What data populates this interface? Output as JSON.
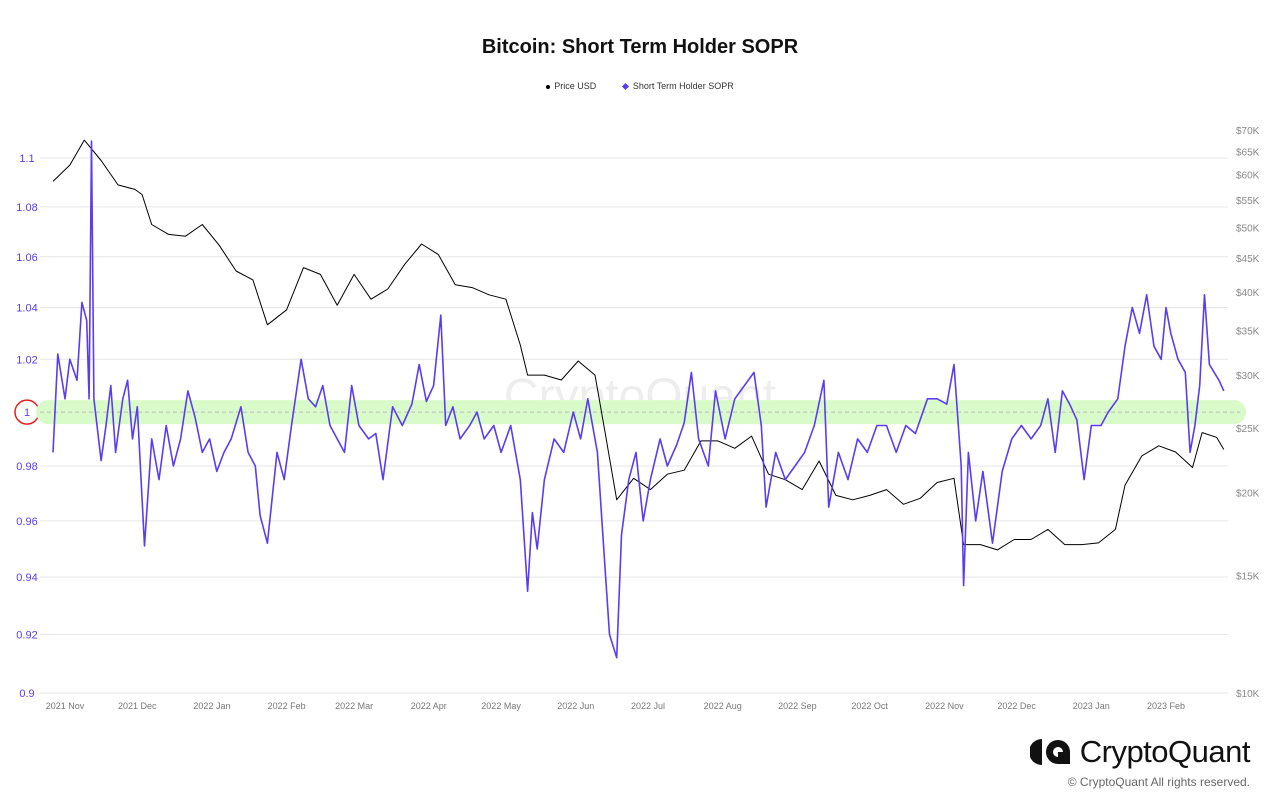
{
  "chart_data": {
    "type": "line",
    "title": "Bitcoin: Short Term Holder SOPR",
    "legend_position": "top",
    "grid": true,
    "x_ticks": [
      "2021 Nov",
      "2021 Dec",
      "2022 Jan",
      "2022 Feb",
      "2022 Mar",
      "2022 Apr",
      "2022 May",
      "2022 Jun",
      "2022 Jul",
      "2022 Aug",
      "2022 Sep",
      "2022 Oct",
      "2022 Nov",
      "2022 Dec",
      "2023 Jan",
      "2023 Feb"
    ],
    "left_axis": {
      "scale": "log",
      "range": [
        0.9,
        1.1
      ],
      "ticks": [
        "1.1",
        "1.08",
        "1.06",
        "1.04",
        "1.02",
        "1",
        "0.98",
        "0.96",
        "0.94",
        "0.92",
        "0.9"
      ],
      "color": "#5b3cf0",
      "highlighted_tick": "1",
      "highlight_color": "#e02020"
    },
    "right_axis": {
      "scale": "log",
      "range": [
        10000,
        70000
      ],
      "ticks": [
        "$70K",
        "$65K",
        "$60K",
        "$55K",
        "$50K",
        "$45K",
        "$40K",
        "$35K",
        "$30K",
        "$25K",
        "$20K",
        "$15K",
        "$10K"
      ]
    },
    "reference_band": {
      "value": 1,
      "color": "#d9fbc9"
    },
    "series": [
      {
        "name": "Price USD",
        "color": "#000000",
        "axis": "right",
        "points": [
          [
            "2021-10-27",
            58600
          ],
          [
            "2021-11-03",
            62000
          ],
          [
            "2021-11-09",
            67600
          ],
          [
            "2021-11-16",
            63000
          ],
          [
            "2021-11-23",
            57900
          ],
          [
            "2021-11-30",
            57000
          ],
          [
            "2021-12-03",
            56000
          ],
          [
            "2021-12-07",
            50500
          ],
          [
            "2021-12-14",
            48800
          ],
          [
            "2021-12-21",
            48500
          ],
          [
            "2021-12-28",
            50500
          ],
          [
            "2022-01-04",
            47000
          ],
          [
            "2022-01-11",
            43000
          ],
          [
            "2022-01-18",
            41700
          ],
          [
            "2022-01-24",
            35700
          ],
          [
            "2022-02-01",
            37600
          ],
          [
            "2022-02-08",
            43500
          ],
          [
            "2022-02-15",
            42500
          ],
          [
            "2022-02-22",
            38200
          ],
          [
            "2022-03-01",
            42500
          ],
          [
            "2022-03-08",
            39000
          ],
          [
            "2022-03-15",
            40400
          ],
          [
            "2022-03-22",
            44000
          ],
          [
            "2022-03-29",
            47200
          ],
          [
            "2022-04-05",
            45500
          ],
          [
            "2022-04-12",
            41000
          ],
          [
            "2022-04-19",
            40600
          ],
          [
            "2022-04-26",
            39600
          ],
          [
            "2022-05-03",
            39000
          ],
          [
            "2022-05-09",
            33300
          ],
          [
            "2022-05-12",
            30000
          ],
          [
            "2022-05-19",
            30000
          ],
          [
            "2022-05-26",
            29500
          ],
          [
            "2022-06-02",
            31500
          ],
          [
            "2022-06-09",
            30000
          ],
          [
            "2022-06-13",
            24800
          ],
          [
            "2022-06-18",
            19500
          ],
          [
            "2022-06-25",
            21000
          ],
          [
            "2022-07-02",
            20200
          ],
          [
            "2022-07-09",
            21300
          ],
          [
            "2022-07-16",
            21600
          ],
          [
            "2022-07-23",
            23900
          ],
          [
            "2022-07-30",
            23900
          ],
          [
            "2022-08-06",
            23300
          ],
          [
            "2022-08-13",
            24300
          ],
          [
            "2022-08-20",
            21300
          ],
          [
            "2022-08-27",
            20900
          ],
          [
            "2022-09-03",
            20200
          ],
          [
            "2022-09-10",
            22300
          ],
          [
            "2022-09-17",
            19800
          ],
          [
            "2022-09-24",
            19500
          ],
          [
            "2022-10-01",
            19800
          ],
          [
            "2022-10-08",
            20200
          ],
          [
            "2022-10-15",
            19200
          ],
          [
            "2022-10-22",
            19600
          ],
          [
            "2022-10-29",
            20700
          ],
          [
            "2022-11-05",
            21000
          ],
          [
            "2022-11-09",
            16700
          ],
          [
            "2022-11-16",
            16700
          ],
          [
            "2022-11-23",
            16400
          ],
          [
            "2022-11-30",
            17000
          ],
          [
            "2022-12-07",
            17000
          ],
          [
            "2022-12-14",
            17600
          ],
          [
            "2022-12-21",
            16700
          ],
          [
            "2022-12-28",
            16700
          ],
          [
            "2023-01-04",
            16800
          ],
          [
            "2023-01-11",
            17600
          ],
          [
            "2023-01-15",
            20500
          ],
          [
            "2023-01-22",
            22700
          ],
          [
            "2023-01-29",
            23500
          ],
          [
            "2023-02-05",
            23000
          ],
          [
            "2023-02-12",
            21800
          ],
          [
            "2023-02-16",
            24600
          ],
          [
            "2023-02-22",
            24200
          ],
          [
            "2023-02-25",
            23200
          ]
        ]
      },
      {
        "name": "Short Term Holder SOPR",
        "color": "#5b3cf0",
        "axis": "left",
        "points": [
          [
            "2021-10-27",
            0.985
          ],
          [
            "2021-10-29",
            1.022
          ],
          [
            "2021-11-01",
            1.005
          ],
          [
            "2021-11-03",
            1.02
          ],
          [
            "2021-11-06",
            1.012
          ],
          [
            "2021-11-08",
            1.042
          ],
          [
            "2021-11-10",
            1.035
          ],
          [
            "2021-11-11",
            1.005
          ],
          [
            "2021-11-12",
            1.107
          ],
          [
            "2021-11-13",
            1.005
          ],
          [
            "2021-11-16",
            0.982
          ],
          [
            "2021-11-18",
            0.995
          ],
          [
            "2021-11-20",
            1.01
          ],
          [
            "2021-11-22",
            0.985
          ],
          [
            "2021-11-25",
            1.005
          ],
          [
            "2021-11-27",
            1.012
          ],
          [
            "2021-11-29",
            0.99
          ],
          [
            "2021-12-01",
            1.002
          ],
          [
            "2021-12-04",
            0.951
          ],
          [
            "2021-12-07",
            0.99
          ],
          [
            "2021-12-10",
            0.975
          ],
          [
            "2021-12-13",
            0.995
          ],
          [
            "2021-12-16",
            0.98
          ],
          [
            "2021-12-19",
            0.99
          ],
          [
            "2021-12-22",
            1.008
          ],
          [
            "2021-12-25",
            0.998
          ],
          [
            "2021-12-28",
            0.985
          ],
          [
            "2021-12-31",
            0.99
          ],
          [
            "2022-01-03",
            0.978
          ],
          [
            "2022-01-06",
            0.985
          ],
          [
            "2022-01-09",
            0.99
          ],
          [
            "2022-01-13",
            1.002
          ],
          [
            "2022-01-16",
            0.985
          ],
          [
            "2022-01-19",
            0.98
          ],
          [
            "2022-01-21",
            0.962
          ],
          [
            "2022-01-24",
            0.952
          ],
          [
            "2022-01-28",
            0.985
          ],
          [
            "2022-01-31",
            0.975
          ],
          [
            "2022-02-03",
            0.995
          ],
          [
            "2022-02-07",
            1.02
          ],
          [
            "2022-02-10",
            1.005
          ],
          [
            "2022-02-13",
            1.002
          ],
          [
            "2022-02-16",
            1.01
          ],
          [
            "2022-02-19",
            0.995
          ],
          [
            "2022-02-22",
            0.99
          ],
          [
            "2022-02-25",
            0.985
          ],
          [
            "2022-02-28",
            1.01
          ],
          [
            "2022-03-03",
            0.995
          ],
          [
            "2022-03-07",
            0.99
          ],
          [
            "2022-03-10",
            0.992
          ],
          [
            "2022-03-13",
            0.975
          ],
          [
            "2022-03-17",
            1.002
          ],
          [
            "2022-03-21",
            0.995
          ],
          [
            "2022-03-25",
            1.003
          ],
          [
            "2022-03-28",
            1.018
          ],
          [
            "2022-03-31",
            1.004
          ],
          [
            "2022-04-03",
            1.01
          ],
          [
            "2022-04-06",
            1.037
          ],
          [
            "2022-04-08",
            0.995
          ],
          [
            "2022-04-11",
            1.002
          ],
          [
            "2022-04-14",
            0.99
          ],
          [
            "2022-04-18",
            0.995
          ],
          [
            "2022-04-21",
            1.0
          ],
          [
            "2022-04-24",
            0.99
          ],
          [
            "2022-04-28",
            0.995
          ],
          [
            "2022-05-01",
            0.985
          ],
          [
            "2022-05-05",
            0.995
          ],
          [
            "2022-05-09",
            0.975
          ],
          [
            "2022-05-12",
            0.935
          ],
          [
            "2022-05-14",
            0.963
          ],
          [
            "2022-05-16",
            0.95
          ],
          [
            "2022-05-19",
            0.975
          ],
          [
            "2022-05-23",
            0.99
          ],
          [
            "2022-05-27",
            0.985
          ],
          [
            "2022-05-31",
            1.0
          ],
          [
            "2022-06-03",
            0.99
          ],
          [
            "2022-06-06",
            1.005
          ],
          [
            "2022-06-10",
            0.985
          ],
          [
            "2022-06-13",
            0.945
          ],
          [
            "2022-06-15",
            0.92
          ],
          [
            "2022-06-18",
            0.912
          ],
          [
            "2022-06-20",
            0.955
          ],
          [
            "2022-06-23",
            0.975
          ],
          [
            "2022-06-26",
            0.985
          ],
          [
            "2022-06-29",
            0.96
          ],
          [
            "2022-07-02",
            0.975
          ],
          [
            "2022-07-06",
            0.99
          ],
          [
            "2022-07-09",
            0.98
          ],
          [
            "2022-07-13",
            0.988
          ],
          [
            "2022-07-16",
            0.996
          ],
          [
            "2022-07-19",
            1.015
          ],
          [
            "2022-07-22",
            0.99
          ],
          [
            "2022-07-26",
            0.98
          ],
          [
            "2022-07-29",
            1.008
          ],
          [
            "2022-08-02",
            0.99
          ],
          [
            "2022-08-06",
            1.005
          ],
          [
            "2022-08-10",
            1.01
          ],
          [
            "2022-08-14",
            1.015
          ],
          [
            "2022-08-17",
            0.995
          ],
          [
            "2022-08-19",
            0.965
          ],
          [
            "2022-08-23",
            0.985
          ],
          [
            "2022-08-27",
            0.975
          ],
          [
            "2022-08-31",
            0.98
          ],
          [
            "2022-09-04",
            0.985
          ],
          [
            "2022-09-08",
            0.995
          ],
          [
            "2022-09-12",
            1.012
          ],
          [
            "2022-09-14",
            0.965
          ],
          [
            "2022-09-18",
            0.985
          ],
          [
            "2022-09-22",
            0.975
          ],
          [
            "2022-09-26",
            0.99
          ],
          [
            "2022-09-30",
            0.985
          ],
          [
            "2022-10-04",
            0.995
          ],
          [
            "2022-10-08",
            0.995
          ],
          [
            "2022-10-12",
            0.985
          ],
          [
            "2022-10-16",
            0.995
          ],
          [
            "2022-10-20",
            0.992
          ],
          [
            "2022-10-25",
            1.005
          ],
          [
            "2022-10-29",
            1.005
          ],
          [
            "2022-11-02",
            1.003
          ],
          [
            "2022-11-05",
            1.018
          ],
          [
            "2022-11-08",
            0.98
          ],
          [
            "2022-11-09",
            0.937
          ],
          [
            "2022-11-11",
            0.985
          ],
          [
            "2022-11-14",
            0.96
          ],
          [
            "2022-11-17",
            0.978
          ],
          [
            "2022-11-21",
            0.952
          ],
          [
            "2022-11-25",
            0.978
          ],
          [
            "2022-11-29",
            0.99
          ],
          [
            "2022-12-03",
            0.995
          ],
          [
            "2022-12-07",
            0.99
          ],
          [
            "2022-12-11",
            0.995
          ],
          [
            "2022-12-14",
            1.005
          ],
          [
            "2022-12-17",
            0.985
          ],
          [
            "2022-12-20",
            1.008
          ],
          [
            "2022-12-23",
            1.003
          ],
          [
            "2022-12-26",
            0.997
          ],
          [
            "2022-12-29",
            0.975
          ],
          [
            "2023-01-01",
            0.995
          ],
          [
            "2023-01-05",
            0.995
          ],
          [
            "2023-01-08",
            1.0
          ],
          [
            "2023-01-12",
            1.005
          ],
          [
            "2023-01-15",
            1.025
          ],
          [
            "2023-01-18",
            1.04
          ],
          [
            "2023-01-21",
            1.03
          ],
          [
            "2023-01-24",
            1.045
          ],
          [
            "2023-01-27",
            1.025
          ],
          [
            "2023-01-30",
            1.02
          ],
          [
            "2023-02-01",
            1.04
          ],
          [
            "2023-02-03",
            1.03
          ],
          [
            "2023-02-06",
            1.02
          ],
          [
            "2023-02-09",
            1.015
          ],
          [
            "2023-02-11",
            0.985
          ],
          [
            "2023-02-13",
            0.995
          ],
          [
            "2023-02-15",
            1.01
          ],
          [
            "2023-02-17",
            1.045
          ],
          [
            "2023-02-19",
            1.018
          ],
          [
            "2023-02-21",
            1.015
          ],
          [
            "2023-02-23",
            1.012
          ],
          [
            "2023-02-25",
            1.008
          ]
        ]
      }
    ]
  },
  "watermark": "CryptoQuant",
  "logo": {
    "text": "CryptoQuant"
  },
  "copyright": "© CryptoQuant All rights reserved."
}
